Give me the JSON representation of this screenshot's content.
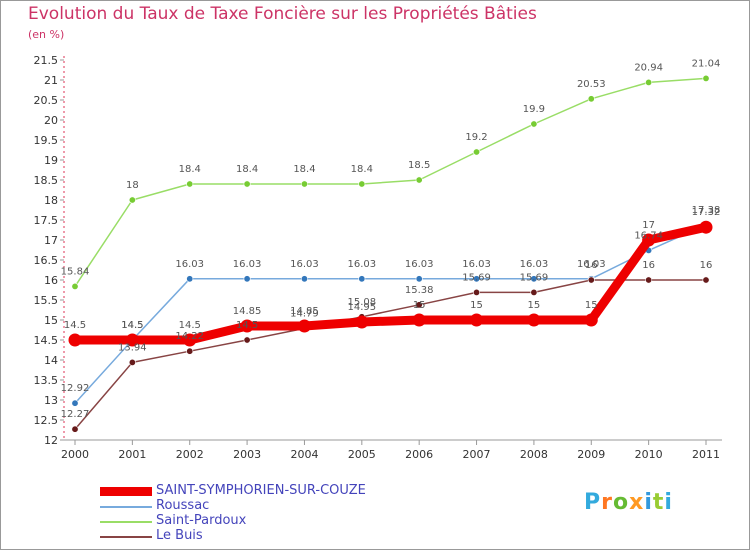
{
  "title": "Evolution du Taux de Taxe Foncière sur les Propriétés Bâties",
  "unit_label": "(en %)",
  "logo": {
    "letters": [
      "P",
      "r",
      "o",
      "x",
      "i",
      "t",
      "i"
    ],
    "colors": [
      "#33aadd",
      "#ff7722",
      "#66bb33",
      "#ff9922",
      "#3399dd",
      "#99cc33",
      "#33aadd"
    ]
  },
  "chart_data": {
    "type": "line",
    "title": "Evolution du Taux de Taxe Foncière sur les Propriétés Bâties",
    "ylabel": "(en %)",
    "xlabel": "",
    "x": [
      "2000",
      "2001",
      "2002",
      "2003",
      "2004",
      "2005",
      "2006",
      "2007",
      "2008",
      "2009",
      "2010",
      "2011"
    ],
    "ylim": [
      12,
      21.5
    ],
    "yticks": [
      12,
      12.5,
      13,
      13.5,
      14,
      14.5,
      15,
      15.5,
      16,
      16.5,
      17,
      17.5,
      18,
      18.5,
      19,
      19.5,
      20,
      20.5,
      21,
      21.5
    ],
    "ytick_labels": [
      "12",
      "12.5",
      "13",
      "13.5",
      "14",
      "14.5",
      "15",
      "15.5",
      "16",
      "16.5",
      "17",
      "17.5",
      "18",
      "18.5",
      "19",
      "19.5",
      "20",
      "20.5",
      "21",
      "21.5"
    ],
    "grid": false,
    "series": [
      {
        "name": "Saint-Pardoux",
        "color": "#99dd66",
        "marker": "#77cc33",
        "values": [
          15.84,
          18,
          18.4,
          18.4,
          18.4,
          18.4,
          18.5,
          19.2,
          19.9,
          20.53,
          20.94,
          21.04
        ],
        "labels": [
          "15.84",
          "18",
          "18.4",
          "18.4",
          "18.4",
          "18.4",
          "18.5",
          "19.2",
          "19.9",
          "20.53",
          "20.94",
          "21.04"
        ]
      },
      {
        "name": "Roussac",
        "color": "#77aadd",
        "marker": "#3377bb",
        "values": [
          12.92,
          14.5,
          16.03,
          16.03,
          16.03,
          16.03,
          16.03,
          16.03,
          16.03,
          16.03,
          16.74,
          17.38
        ],
        "labels": [
          "12.92",
          "14.5",
          "16.03",
          "16.03",
          "16.03",
          "16.03",
          "16.03",
          "16.03",
          "16.03",
          "16.03",
          "16.74",
          "17.38"
        ]
      },
      {
        "name": "Le Buis",
        "color": "#884444",
        "marker": "#661a1a",
        "values": [
          12.27,
          13.94,
          14.22,
          14.5,
          14.79,
          15.08,
          15.38,
          15.69,
          15.69,
          16,
          16,
          16
        ],
        "labels": [
          "12.27",
          "13.94",
          "14.22",
          "14.5",
          "14.79",
          "15.08",
          "15.38",
          "15.69",
          "15.69",
          "16",
          "16",
          "16"
        ]
      },
      {
        "name": "SAINT-SYMPHORIEN-SUR-COUZE",
        "color": "#ee0000",
        "marker": "#ee0000",
        "values": [
          14.5,
          14.5,
          14.5,
          14.85,
          14.85,
          14.95,
          15,
          15,
          15,
          15,
          17,
          17.32
        ],
        "labels": [
          "14.5",
          "14.5",
          "14.5",
          "14.85",
          "14.85",
          "14.95",
          "15",
          "15",
          "15",
          "15",
          "17",
          "17.32"
        ]
      }
    ],
    "legend": [
      {
        "name": "SAINT-SYMPHORIEN-SUR-COUZE",
        "color": "#ee0000",
        "thick": true
      },
      {
        "name": "Roussac",
        "color": "#77aadd",
        "thick": false
      },
      {
        "name": "Saint-Pardoux",
        "color": "#99dd66",
        "thick": false
      },
      {
        "name": "Le Buis",
        "color": "#884444",
        "thick": false
      }
    ]
  }
}
